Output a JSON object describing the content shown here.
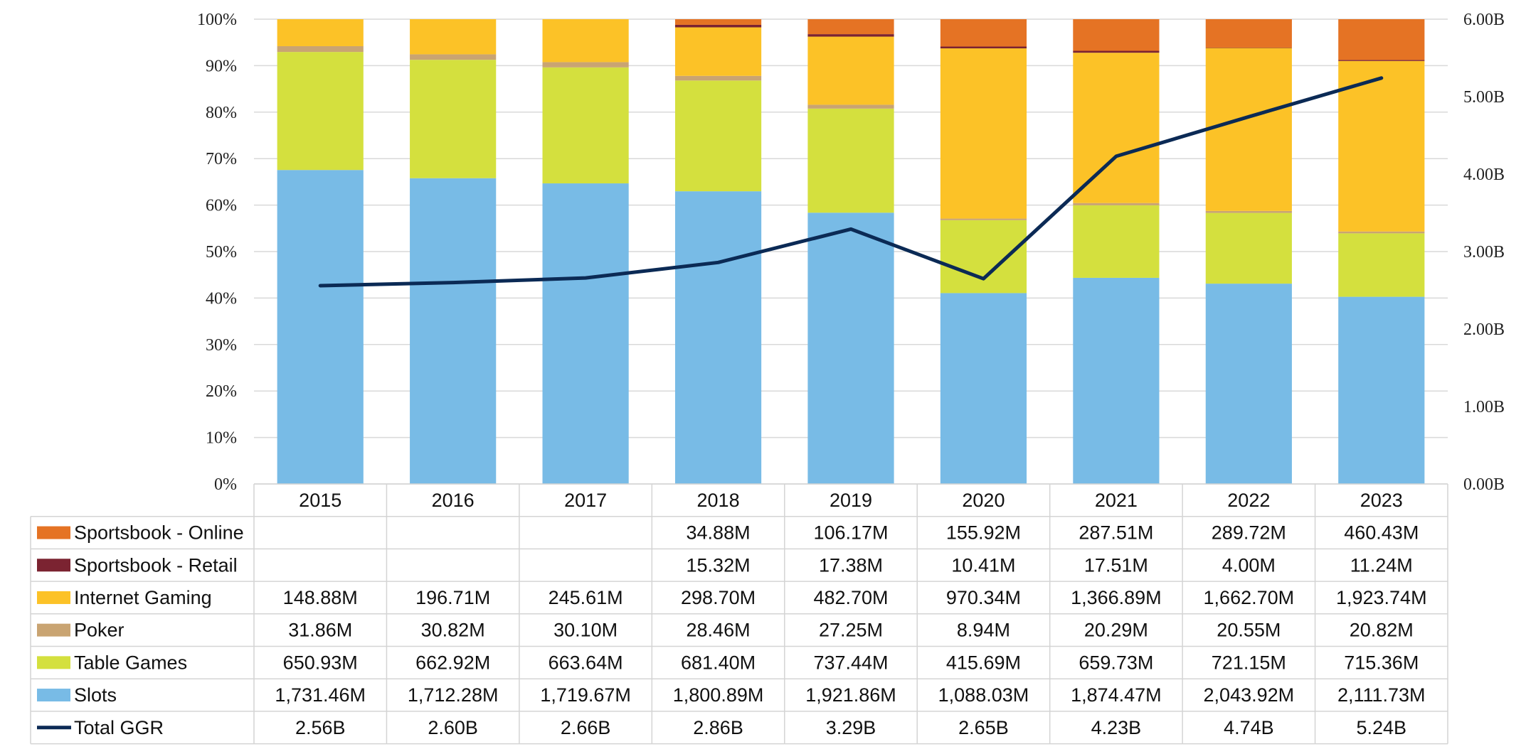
{
  "chart_data": {
    "type": "bar",
    "stacked": "percent",
    "categories": [
      "2015",
      "2016",
      "2017",
      "2018",
      "2019",
      "2020",
      "2021",
      "2022",
      "2023"
    ],
    "y_left": {
      "ticks": [
        "0%",
        "10%",
        "20%",
        "30%",
        "40%",
        "50%",
        "60%",
        "70%",
        "80%",
        "90%",
        "100%"
      ],
      "range": [
        0,
        100
      ]
    },
    "y_right": {
      "ticks": [
        "0.00B",
        "1.00B",
        "2.00B",
        "3.00B",
        "4.00B",
        "5.00B",
        "6.00B"
      ],
      "range": [
        0,
        6
      ]
    },
    "grid": true,
    "legend": "data-table",
    "series": [
      {
        "name": "Slots",
        "color": "#78BBE6",
        "values": [
          1731.46,
          1712.28,
          1719.67,
          1800.89,
          1921.86,
          1088.03,
          1874.47,
          2043.92,
          2111.73
        ],
        "labels": [
          "1,731.46M",
          "1,712.28M",
          "1,719.67M",
          "1,800.89M",
          "1,921.86M",
          "1,088.03M",
          "1,874.47M",
          "2,043.92M",
          "2,111.73M"
        ]
      },
      {
        "name": "Table Games",
        "color": "#D4E03E",
        "values": [
          650.93,
          662.92,
          663.64,
          681.4,
          737.44,
          415.69,
          659.73,
          721.15,
          715.36
        ],
        "labels": [
          "650.93M",
          "662.92M",
          "663.64M",
          "681.40M",
          "737.44M",
          "415.69M",
          "659.73M",
          "721.15M",
          "715.36M"
        ]
      },
      {
        "name": "Poker",
        "color": "#C9A472",
        "values": [
          31.86,
          30.82,
          30.1,
          28.46,
          27.25,
          8.94,
          20.29,
          20.55,
          20.82
        ],
        "labels": [
          "31.86M",
          "30.82M",
          "30.10M",
          "28.46M",
          "27.25M",
          "8.94M",
          "20.29M",
          "20.55M",
          "20.82M"
        ]
      },
      {
        "name": "Internet Gaming",
        "color": "#FCC227",
        "values": [
          148.88,
          196.71,
          245.61,
          298.7,
          482.7,
          970.34,
          1366.89,
          1662.7,
          1923.74
        ],
        "labels": [
          "148.88M",
          "196.71M",
          "245.61M",
          "298.70M",
          "482.70M",
          "970.34M",
          "1,366.89M",
          "1,662.70M",
          "1,923.74M"
        ]
      },
      {
        "name": "Sportsbook - Retail",
        "color": "#7B2331",
        "values": [
          0,
          0,
          0,
          15.32,
          17.38,
          10.41,
          17.51,
          4.0,
          11.24
        ],
        "labels": [
          "",
          "",
          "",
          "15.32M",
          "17.38M",
          "10.41M",
          "17.51M",
          "4.00M",
          "11.24M"
        ]
      },
      {
        "name": "Sportsbook - Online",
        "color": "#E57324",
        "values": [
          0,
          0,
          0,
          34.88,
          106.17,
          155.92,
          287.51,
          289.72,
          460.43
        ],
        "labels": [
          "",
          "",
          "",
          "34.88M",
          "106.17M",
          "155.92M",
          "287.51M",
          "289.72M",
          "460.43M"
        ]
      }
    ],
    "line": {
      "name": "Total GGR",
      "color": "#0B2A55",
      "axis": "right",
      "values": [
        2.56,
        2.6,
        2.66,
        2.86,
        3.29,
        2.65,
        4.23,
        4.74,
        5.24
      ],
      "labels": [
        "2.56B",
        "2.60B",
        "2.66B",
        "2.86B",
        "3.29B",
        "2.65B",
        "4.23B",
        "4.74B",
        "5.24B"
      ]
    },
    "table_rows_order": [
      "Sportsbook - Online",
      "Sportsbook - Retail",
      "Internet Gaming",
      "Poker",
      "Table Games",
      "Slots",
      "Total GGR"
    ]
  }
}
